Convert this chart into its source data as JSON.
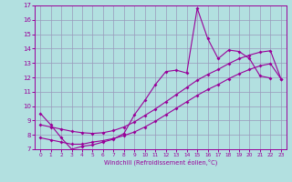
{
  "xlabel": "Windchill (Refroidissement éolien,°C)",
  "x_values": [
    0,
    1,
    2,
    3,
    4,
    5,
    6,
    7,
    8,
    9,
    10,
    11,
    12,
    13,
    14,
    15,
    16,
    17,
    18,
    19,
    20,
    21,
    22,
    23
  ],
  "series1": [
    9.5,
    8.7,
    7.8,
    7.0,
    7.2,
    7.3,
    7.5,
    7.7,
    8.1,
    9.4,
    10.4,
    11.5,
    12.4,
    12.5,
    12.3,
    16.8,
    14.7,
    13.3,
    13.9,
    13.8,
    13.3,
    12.1,
    11.95,
    null
  ],
  "series2": [
    7.8,
    7.65,
    7.5,
    7.35,
    7.35,
    7.5,
    7.6,
    7.75,
    7.95,
    8.2,
    8.55,
    8.95,
    9.4,
    9.85,
    10.3,
    10.75,
    11.15,
    11.5,
    11.9,
    12.25,
    12.55,
    12.8,
    12.95,
    11.9
  ],
  "series3": [
    8.7,
    8.55,
    8.4,
    8.25,
    8.15,
    8.1,
    8.15,
    8.3,
    8.55,
    8.9,
    9.35,
    9.8,
    10.3,
    10.8,
    11.3,
    11.8,
    12.2,
    12.55,
    12.95,
    13.3,
    13.55,
    13.75,
    13.85,
    11.9
  ],
  "color": "#990099",
  "bg_color": "#b2e0e0",
  "grid_color": "#9999bb",
  "ylim": [
    7,
    17
  ],
  "xlim": [
    -0.5,
    23.5
  ],
  "yticks": [
    7,
    8,
    9,
    10,
    11,
    12,
    13,
    14,
    15,
    16,
    17
  ],
  "xticks": [
    0,
    1,
    2,
    3,
    4,
    5,
    6,
    7,
    8,
    9,
    10,
    11,
    12,
    13,
    14,
    15,
    16,
    17,
    18,
    19,
    20,
    21,
    22,
    23
  ]
}
